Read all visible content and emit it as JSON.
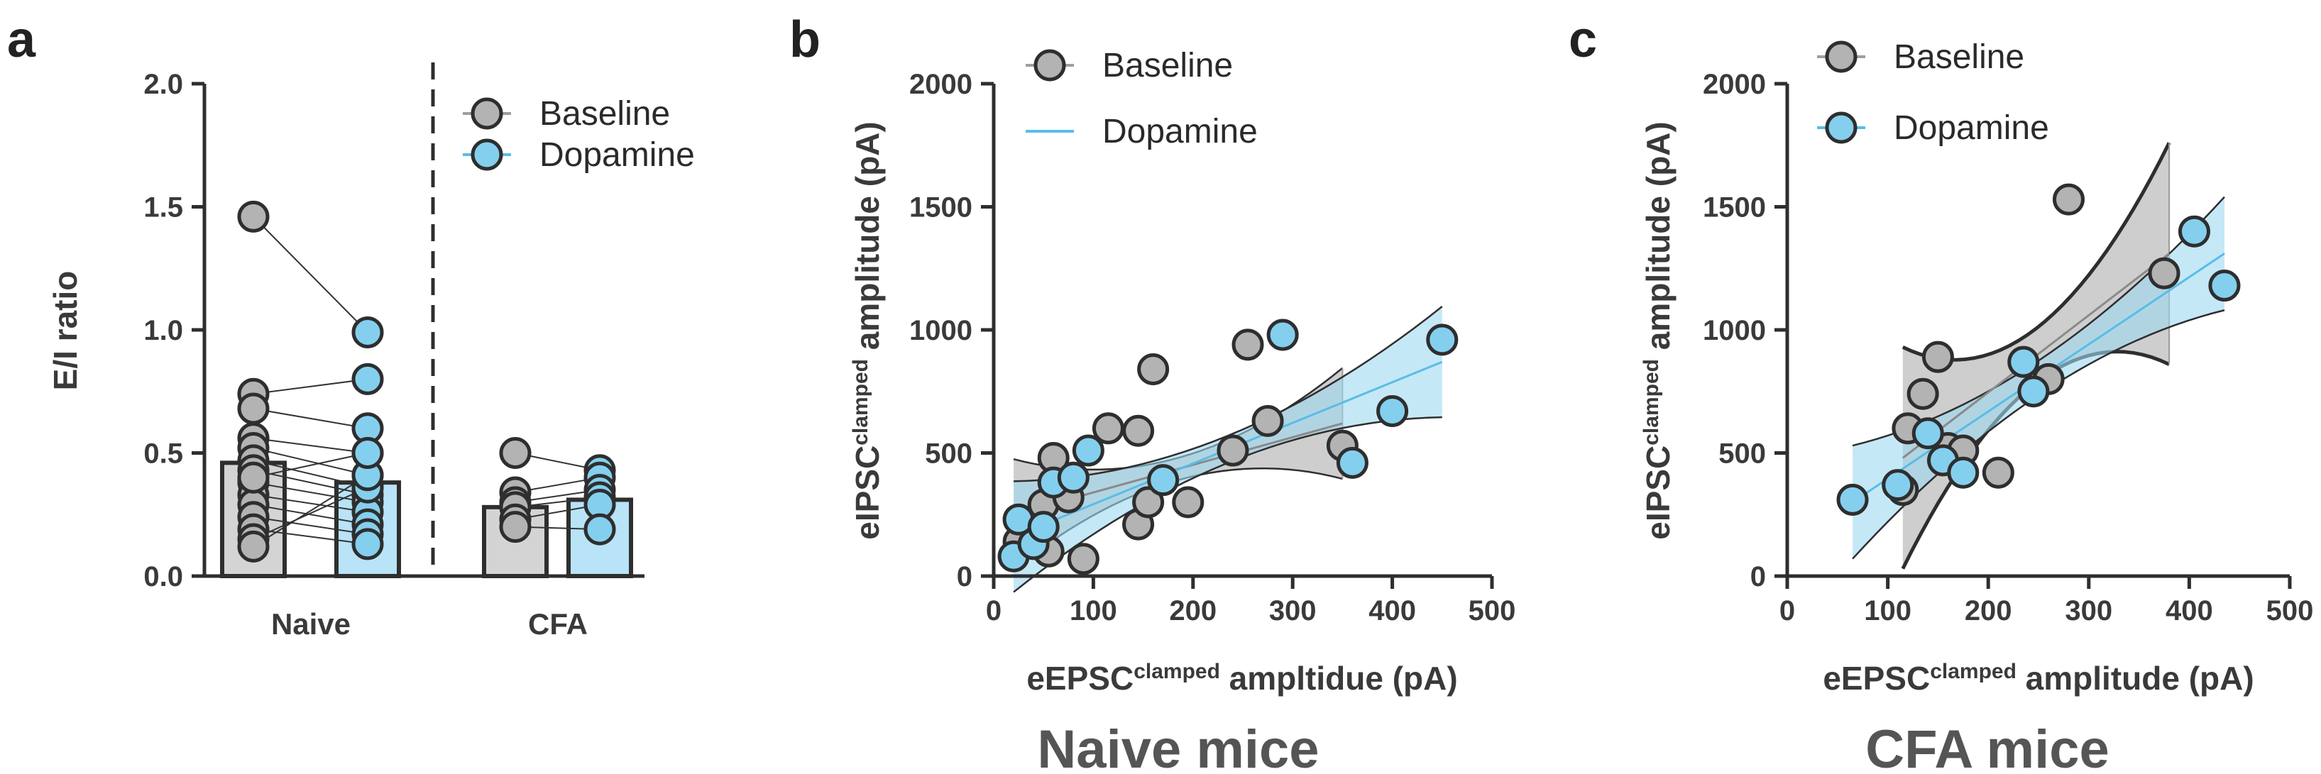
{
  "colors": {
    "baseline_fill": "#b3b3b3",
    "dopamine_fill": "#85cfee",
    "baseline_bar": "#d4d4d4",
    "dopamine_bar": "#b9e3f6",
    "baseline_band": "#bdbdbd",
    "dopamine_band": "#9fd9f2",
    "dopamine_line": "#58bde6",
    "outline": "#2e2e2e"
  },
  "legend": {
    "baseline": "Baseline",
    "dopamine": "Dopamine"
  },
  "panel_a": {
    "letter": "a",
    "ylabel": "E/I ratio",
    "groups": [
      "Naive",
      "CFA"
    ],
    "y_ticks": [
      "0.0",
      "0.5",
      "1.0",
      "1.5",
      "2.0"
    ]
  },
  "panel_b": {
    "letter": "b",
    "ylabel_main": "eIPSC",
    "ylabel_sup": "clamped",
    "ylabel_rest": " amplitude (pA)",
    "xlabel_main": "eEPSC",
    "xlabel_sup": "clamped",
    "xlabel_rest": " ampltidue (pA)",
    "x_ticks": [
      "0",
      "100",
      "200",
      "300",
      "400",
      "500"
    ],
    "y_ticks": [
      "0",
      "500",
      "1000",
      "1500",
      "2000"
    ],
    "caption": "Naive mice"
  },
  "panel_c": {
    "letter": "c",
    "ylabel_main": "eIPSC",
    "ylabel_sup": "clamped",
    "ylabel_rest": " amplitude (pA)",
    "xlabel_main": "eEPSC",
    "xlabel_sup": "clamped",
    "xlabel_rest": " amplitude (pA)",
    "x_ticks": [
      "0",
      "100",
      "200",
      "300",
      "400",
      "500"
    ],
    "y_ticks": [
      "0",
      "500",
      "1000",
      "1500",
      "2000"
    ],
    "caption": "CFA mice"
  },
  "chart_data": [
    {
      "type": "bar",
      "ylabel": "E/I ratio",
      "ylim": [
        0,
        2.0
      ],
      "categories": [
        "Naive",
        "CFA"
      ],
      "series": [
        {
          "name": "Baseline",
          "values": [
            0.46,
            0.28
          ]
        },
        {
          "name": "Dopamine",
          "values": [
            0.38,
            0.31
          ]
        }
      ],
      "pairs": {
        "Naive": [
          [
            1.46,
            0.99
          ],
          [
            0.74,
            0.8
          ],
          [
            0.68,
            0.6
          ],
          [
            0.56,
            0.5
          ],
          [
            0.52,
            0.41
          ],
          [
            0.47,
            0.36
          ],
          [
            0.43,
            0.33
          ],
          [
            0.38,
            0.3
          ],
          [
            0.33,
            0.26
          ],
          [
            0.29,
            0.21
          ],
          [
            0.24,
            0.17
          ],
          [
            0.19,
            0.13
          ],
          [
            0.15,
            0.36
          ],
          [
            0.12,
            0.41
          ],
          [
            0.4,
            0.5
          ]
        ],
        "CFA": [
          [
            0.5,
            0.43
          ],
          [
            0.34,
            0.4
          ],
          [
            0.3,
            0.35
          ],
          [
            0.28,
            0.32
          ],
          [
            0.23,
            0.29
          ],
          [
            0.2,
            0.19
          ]
        ]
      },
      "legend_position": "top-right"
    },
    {
      "type": "scatter",
      "title": "Naive mice",
      "xlabel": "eEPSC clamped ampltidue (pA)",
      "ylabel": "eIPSC clamped amplitude (pA)",
      "xlim": [
        0,
        500
      ],
      "ylim": [
        0,
        2000
      ],
      "legend_position": "top-left",
      "series": [
        {
          "name": "Baseline",
          "points": [
            [
              25,
              140
            ],
            [
              45,
              220
            ],
            [
              50,
              290
            ],
            [
              55,
              100
            ],
            [
              60,
              480
            ],
            [
              75,
              320
            ],
            [
              90,
              70
            ],
            [
              115,
              600
            ],
            [
              145,
              590
            ],
            [
              160,
              840
            ],
            [
              145,
              210
            ],
            [
              155,
              300
            ],
            [
              195,
              300
            ],
            [
              240,
              510
            ],
            [
              255,
              940
            ],
            [
              275,
              630
            ],
            [
              350,
              530
            ]
          ],
          "fit": {
            "x_range": [
              20,
              350
            ],
            "y_at_min": 250,
            "y_at_max": 620
          }
        },
        {
          "name": "Dopamine",
          "points": [
            [
              20,
              80
            ],
            [
              25,
              230
            ],
            [
              40,
              130
            ],
            [
              50,
              200
            ],
            [
              60,
              380
            ],
            [
              80,
              400
            ],
            [
              95,
              510
            ],
            [
              170,
              390
            ],
            [
              290,
              980
            ],
            [
              360,
              460
            ],
            [
              400,
              670
            ],
            [
              450,
              960
            ]
          ],
          "fit": {
            "x_range": [
              20,
              450
            ],
            "y_at_min": 160,
            "y_at_max": 870
          }
        }
      ]
    },
    {
      "type": "scatter",
      "title": "CFA mice",
      "xlabel": "eEPSC clamped amplitude (pA)",
      "ylabel": "eIPSC clamped amplitude (pA)",
      "xlim": [
        0,
        500
      ],
      "ylim": [
        0,
        2000
      ],
      "legend_position": "top-left",
      "series": [
        {
          "name": "Baseline",
          "points": [
            [
              115,
              350
            ],
            [
              120,
              600
            ],
            [
              135,
              740
            ],
            [
              150,
              890
            ],
            [
              160,
              520
            ],
            [
              175,
              510
            ],
            [
              210,
              420
            ],
            [
              260,
              800
            ],
            [
              280,
              1530
            ],
            [
              375,
              1230
            ]
          ],
          "fit": {
            "x_range": [
              115,
              380
            ],
            "y_at_min": 480,
            "y_at_max": 1310
          }
        },
        {
          "name": "Dopamine",
          "points": [
            [
              65,
              310
            ],
            [
              110,
              370
            ],
            [
              140,
              580
            ],
            [
              155,
              470
            ],
            [
              175,
              420
            ],
            [
              235,
              870
            ],
            [
              245,
              750
            ],
            [
              405,
              1400
            ],
            [
              435,
              1180
            ]
          ],
          "fit": {
            "x_range": [
              65,
              435
            ],
            "y_at_min": 300,
            "y_at_max": 1310
          }
        }
      ]
    }
  ]
}
